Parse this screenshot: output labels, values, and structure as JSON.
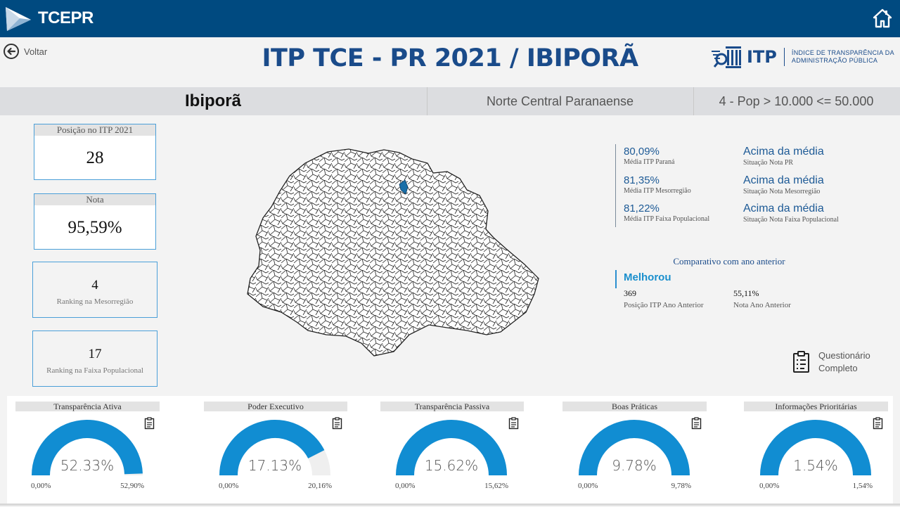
{
  "header": {
    "logo_text": "TCEPR"
  },
  "nav": {
    "back_label": "Voltar"
  },
  "title": "ITP TCE - PR 2021 / IBIPORÃ",
  "itp_logo": {
    "word": "ITP",
    "desc_line1": "ÍNDICE DE TRANSPARÊNCIA DA",
    "desc_line2": "ADMINISTRAÇÃO PÚBLICA"
  },
  "band": {
    "city": "Ibiporã",
    "region": "Norte Central Paranaense",
    "pop_range": "4 - Pop > 10.000 <= 50.000"
  },
  "cards": {
    "posicao_label": "Posição no ITP 2021",
    "posicao_value": "28",
    "nota_label": "Nota",
    "nota_value": "95,59%",
    "ranking_meso_value": "4",
    "ranking_meso_label": "Ranking na Mesorregião",
    "ranking_faixa_value": "17",
    "ranking_faixa_label": "Ranking na Faixa Populacional"
  },
  "stats": [
    {
      "value": "80,09%",
      "label": "Média ITP Paraná",
      "situation": "Acima da média",
      "situation_label": "Situação Nota PR"
    },
    {
      "value": "81,35%",
      "label": "Média ITP Mesorregião",
      "situation": "Acima da média",
      "situation_label": "Situação Nota Mesorregião"
    },
    {
      "value": "81,22%",
      "label": "Média ITP Faixa Populacional",
      "situation": "Acima da média",
      "situation_label": "Situação Nota Faixa Populacional"
    }
  ],
  "comparison": {
    "title": "Comparativo com ano anterior",
    "status": "Melhorou",
    "prev_position": "369",
    "prev_position_label": "Posição ITP Ano Anterior",
    "prev_score": "55,11%",
    "prev_score_label": "Nota Ano Anterior"
  },
  "questionnaire": {
    "line1": "Questionário",
    "line2": "Completo"
  },
  "gauges": [
    {
      "title": "Transparência Ativa",
      "value_label": "52.33%",
      "min_label": "0,00%",
      "max_label": "52,90%",
      "value": 52.33,
      "max": 52.9
    },
    {
      "title": "Poder Executivo",
      "value_label": "17.13%",
      "min_label": "0,00%",
      "max_label": "20,16%",
      "value": 17.13,
      "max": 20.16
    },
    {
      "title": "Transparência Passiva",
      "value_label": "15.62%",
      "min_label": "0,00%",
      "max_label": "15,62%",
      "value": 15.62,
      "max": 15.62
    },
    {
      "title": "Boas Práticas",
      "value_label": "9.78%",
      "min_label": "0,00%",
      "max_label": "9,78%",
      "value": 9.78,
      "max": 9.78
    },
    {
      "title": "Informações Prioritárias",
      "value_label": "1.54%",
      "min_label": "0,00%",
      "max_label": "1,54%",
      "value": 1.54,
      "max": 1.54
    }
  ],
  "colors": {
    "topbar": "#004a80",
    "title": "#1a4b8a",
    "gauge_fill": "#118dd2",
    "gauge_track": "#efefef",
    "highlight_municipality": "#1a6fa8"
  }
}
